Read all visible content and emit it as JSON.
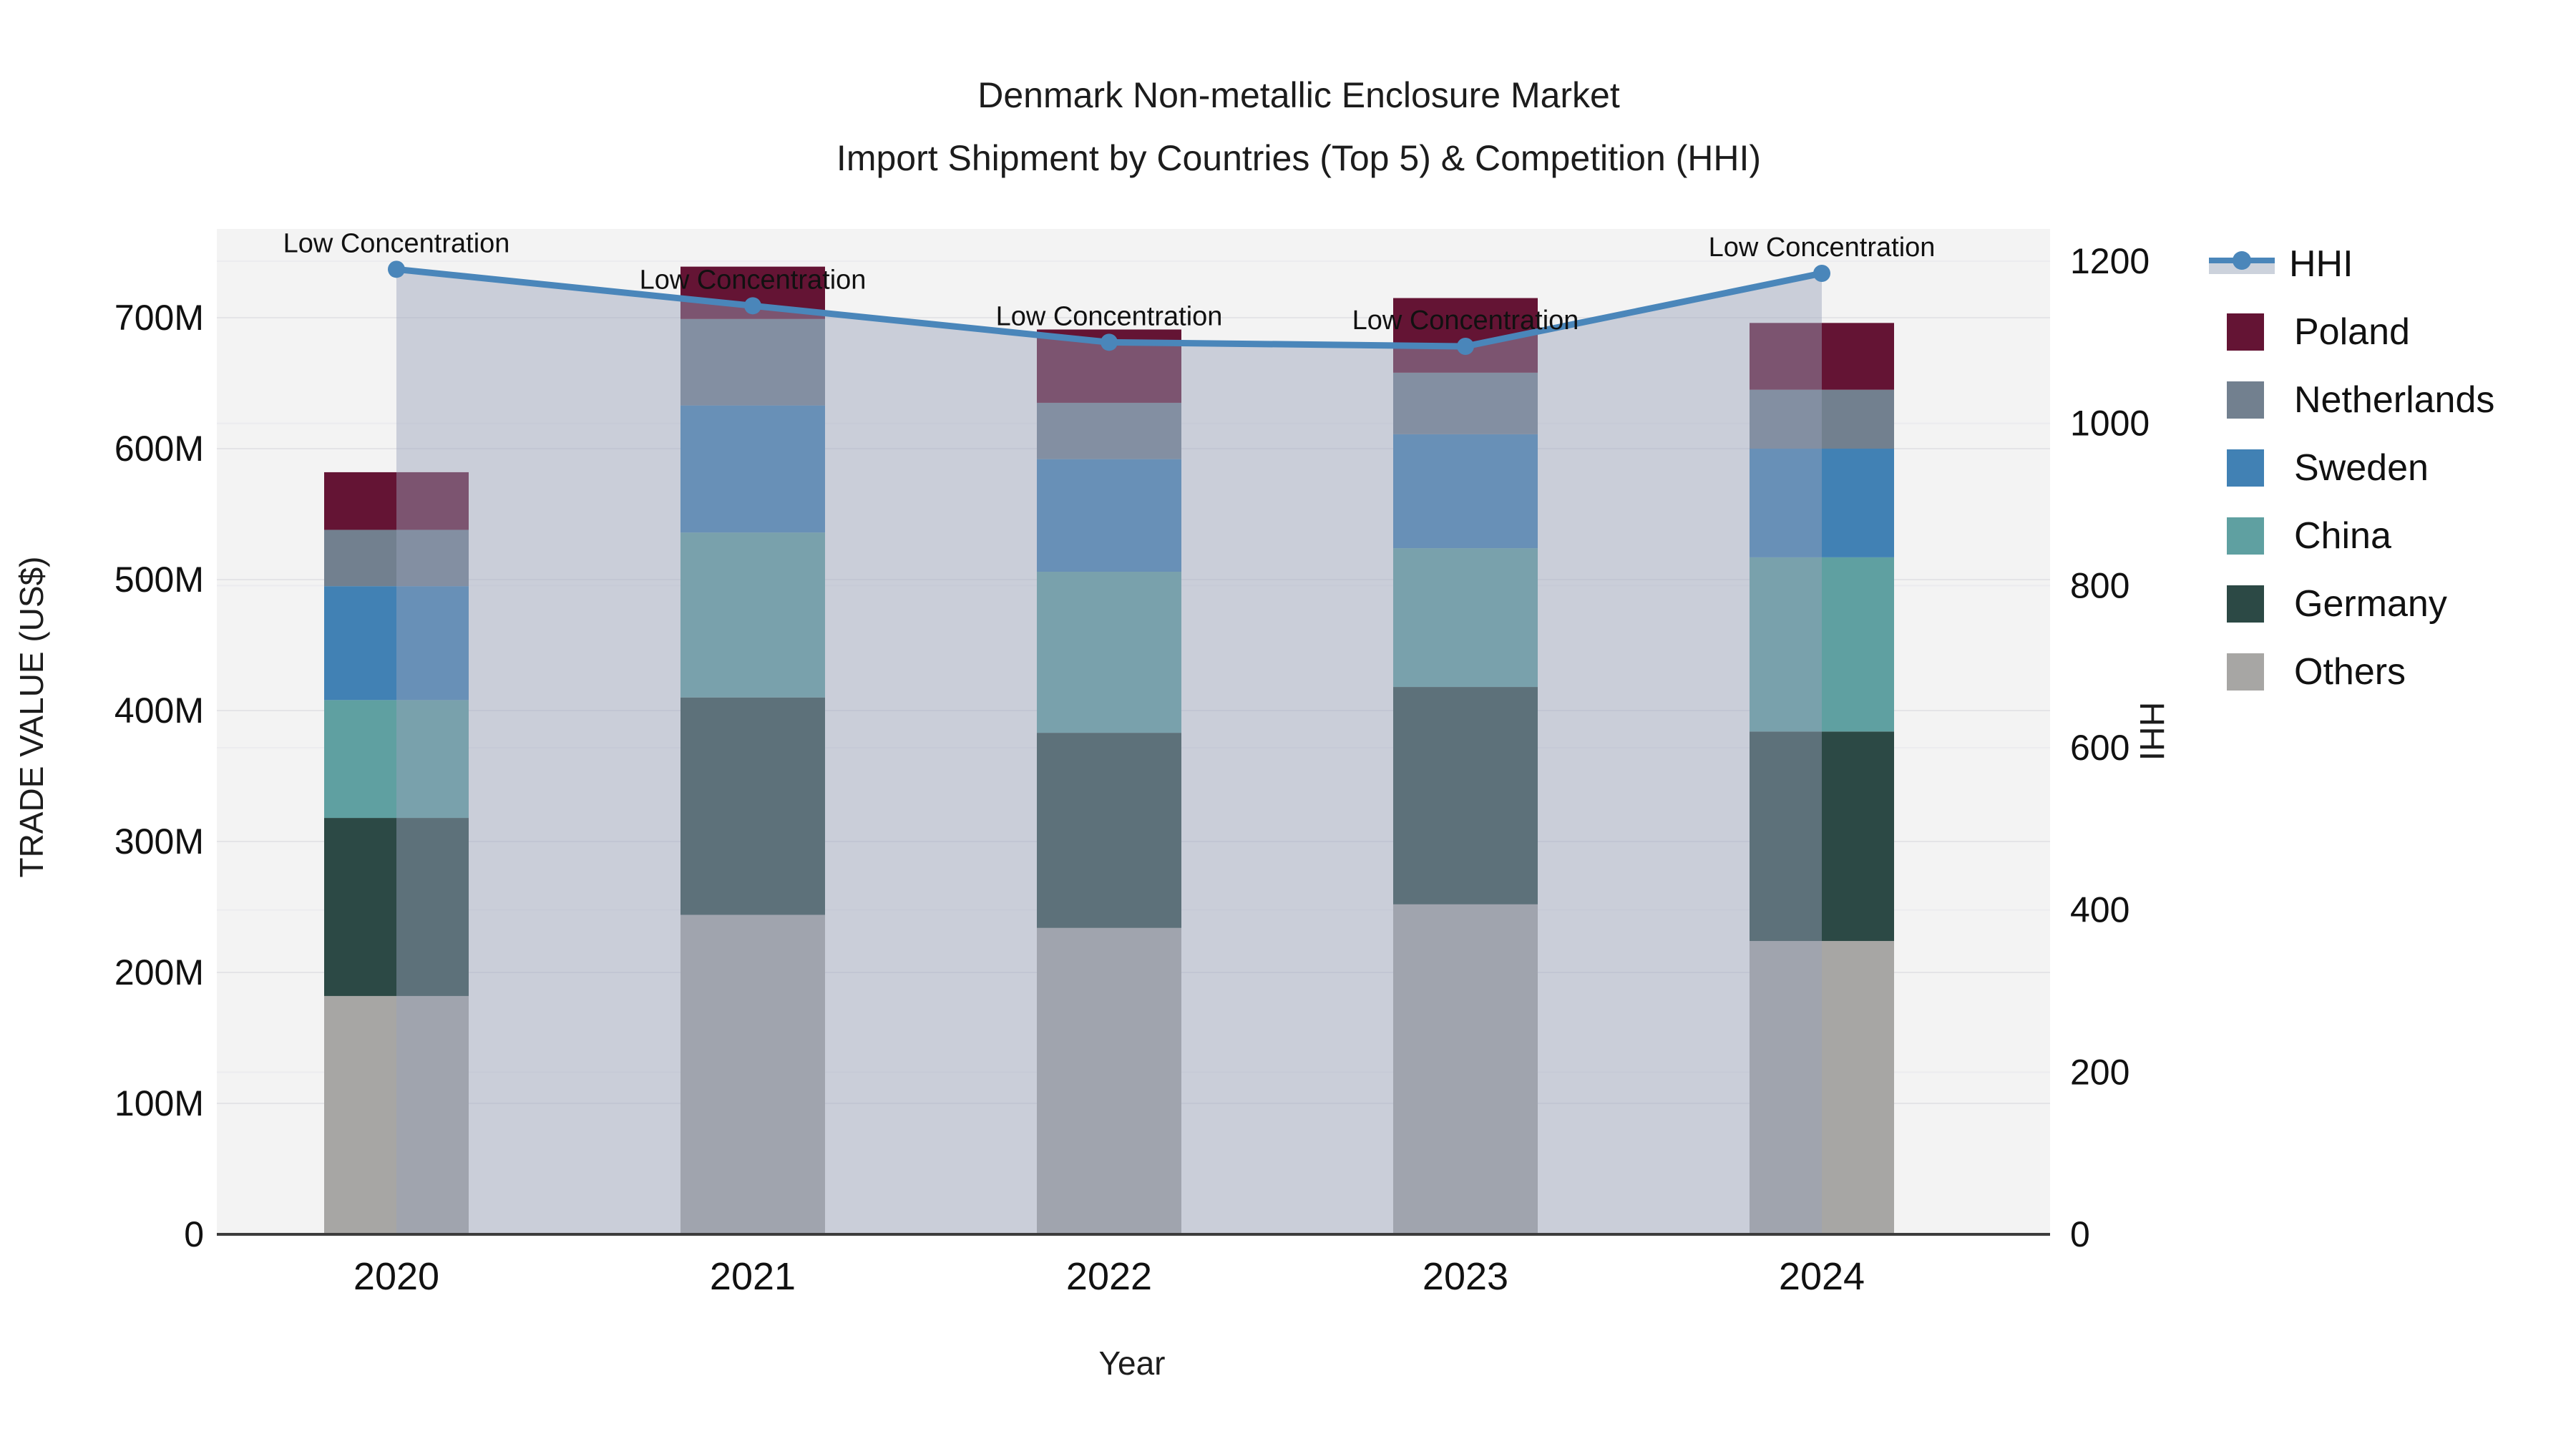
{
  "title": {
    "line1": "Denmark Non-metallic Enclosure Market",
    "line2": "Import Shipment by Countries (Top 5) & Competition (HHI)"
  },
  "axes": {
    "x_title": "Year",
    "y_left_title": "TRADE VALUE (US$)",
    "y_right_title": "HHI",
    "x_ticks": [
      "2020",
      "2021",
      "2022",
      "2023",
      "2024"
    ],
    "y_left_ticks": [
      {
        "label": "0",
        "value": 0
      },
      {
        "label": "100M",
        "value": 100
      },
      {
        "label": "200M",
        "value": 200
      },
      {
        "label": "300M",
        "value": 300
      },
      {
        "label": "400M",
        "value": 400
      },
      {
        "label": "500M",
        "value": 500
      },
      {
        "label": "600M",
        "value": 600
      },
      {
        "label": "700M",
        "value": 700
      }
    ],
    "y_right_ticks": [
      {
        "label": "0",
        "value": 0
      },
      {
        "label": "200",
        "value": 200
      },
      {
        "label": "400",
        "value": 400
      },
      {
        "label": "600",
        "value": 600
      },
      {
        "label": "800",
        "value": 800
      },
      {
        "label": "1000",
        "value": 1000
      },
      {
        "label": "1200",
        "value": 1200
      }
    ]
  },
  "chart_data": {
    "type": "combo-stacked-bar-line",
    "categories": [
      "2020",
      "2021",
      "2022",
      "2023",
      "2024"
    ],
    "units": "trade value in millions US$, stacked bars on left axis; HHI index line on right axis",
    "series": [
      {
        "name": "Others",
        "color": "#a7a6a4",
        "values": [
          182,
          244,
          234,
          252,
          224
        ]
      },
      {
        "name": "Germany",
        "color": "#2c4945",
        "values": [
          136,
          166,
          149,
          166,
          160
        ]
      },
      {
        "name": "China",
        "color": "#5fa0a1",
        "values": [
          90,
          126,
          123,
          106,
          133
        ]
      },
      {
        "name": "Sweden",
        "color": "#4181b4",
        "values": [
          87,
          97,
          86,
          87,
          83
        ]
      },
      {
        "name": "Netherlands",
        "color": "#72808f",
        "values": [
          43,
          66,
          43,
          47,
          45
        ]
      },
      {
        "name": "Poland",
        "color": "#641434",
        "values": [
          44,
          40,
          56,
          57,
          51
        ]
      }
    ],
    "stack_totals": [
      582,
      739,
      691,
      715,
      696
    ],
    "line_series": {
      "name": "HHI",
      "values": [
        1190,
        1145,
        1100,
        1095,
        1185
      ],
      "color": "#4a86ba",
      "area_fill": "rgba(152,162,186,0.45)"
    },
    "annotations": [
      {
        "category": "2020",
        "text": "Low Concentration"
      },
      {
        "category": "2021",
        "text": "Low Concentration"
      },
      {
        "category": "2022",
        "text": "Low Concentration"
      },
      {
        "category": "2023",
        "text": "Low Concentration"
      },
      {
        "category": "2024",
        "text": "Low Concentration"
      }
    ],
    "y_left_range": [
      0,
      768
    ],
    "y_right_range": [
      0,
      1200
    ],
    "grid": true,
    "legend_position": "right",
    "plot_bg": "#f3f3f3",
    "grid_color_left": "#e4e4e7",
    "grid_color_right": "#ececef",
    "axis_line_color": "#3c3c3c",
    "text_color": "#111111"
  },
  "legend": {
    "hhi_band_color": "#ccd2dc",
    "items": [
      {
        "label": "HHI",
        "type": "line",
        "color": "#4a86ba"
      },
      {
        "label": "Poland",
        "type": "swatch",
        "color": "#641434"
      },
      {
        "label": "Netherlands",
        "type": "swatch",
        "color": "#72808f"
      },
      {
        "label": "Sweden",
        "type": "swatch",
        "color": "#4181b4"
      },
      {
        "label": "China",
        "type": "swatch",
        "color": "#5fa0a1"
      },
      {
        "label": "Germany",
        "type": "swatch",
        "color": "#2c4945"
      },
      {
        "label": "Others",
        "type": "swatch",
        "color": "#a7a6a4"
      }
    ]
  }
}
